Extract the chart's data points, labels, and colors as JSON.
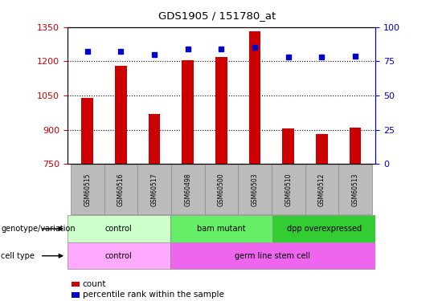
{
  "title": "GDS1905 / 151780_at",
  "samples": [
    "GSM60515",
    "GSM60516",
    "GSM60517",
    "GSM60498",
    "GSM60500",
    "GSM60503",
    "GSM60510",
    "GSM60512",
    "GSM60513"
  ],
  "counts": [
    1040,
    1180,
    970,
    1205,
    1220,
    1330,
    905,
    880,
    910
  ],
  "percentiles": [
    82,
    82,
    80,
    84,
    84,
    85,
    78,
    78,
    79
  ],
  "ymin": 750,
  "ymax": 1350,
  "yticks": [
    750,
    900,
    1050,
    1200,
    1350
  ],
  "y2min": 0,
  "y2max": 100,
  "y2ticks": [
    0,
    25,
    50,
    75,
    100
  ],
  "bar_color": "#cc0000",
  "dot_color": "#0000cc",
  "genotype_groups": [
    {
      "label": "control",
      "start": 0,
      "end": 3,
      "color": "#ccffcc"
    },
    {
      "label": "bam mutant",
      "start": 3,
      "end": 6,
      "color": "#66ee66"
    },
    {
      "label": "dpp overexpressed",
      "start": 6,
      "end": 9,
      "color": "#33cc33"
    }
  ],
  "celltype_groups": [
    {
      "label": "control",
      "start": 0,
      "end": 3,
      "color": "#ffaaff"
    },
    {
      "label": "germ line stem cell",
      "start": 3,
      "end": 9,
      "color": "#ee66ee"
    }
  ],
  "row_labels": [
    "genotype/variation",
    "cell type"
  ],
  "legend_count_label": "count",
  "legend_pct_label": "percentile rank within the sample",
  "grid_color": "#000000",
  "axis_label_color_left": "#cc0000",
  "axis_label_color_right": "#0000cc",
  "tick_label_bg": "#bbbbbb"
}
